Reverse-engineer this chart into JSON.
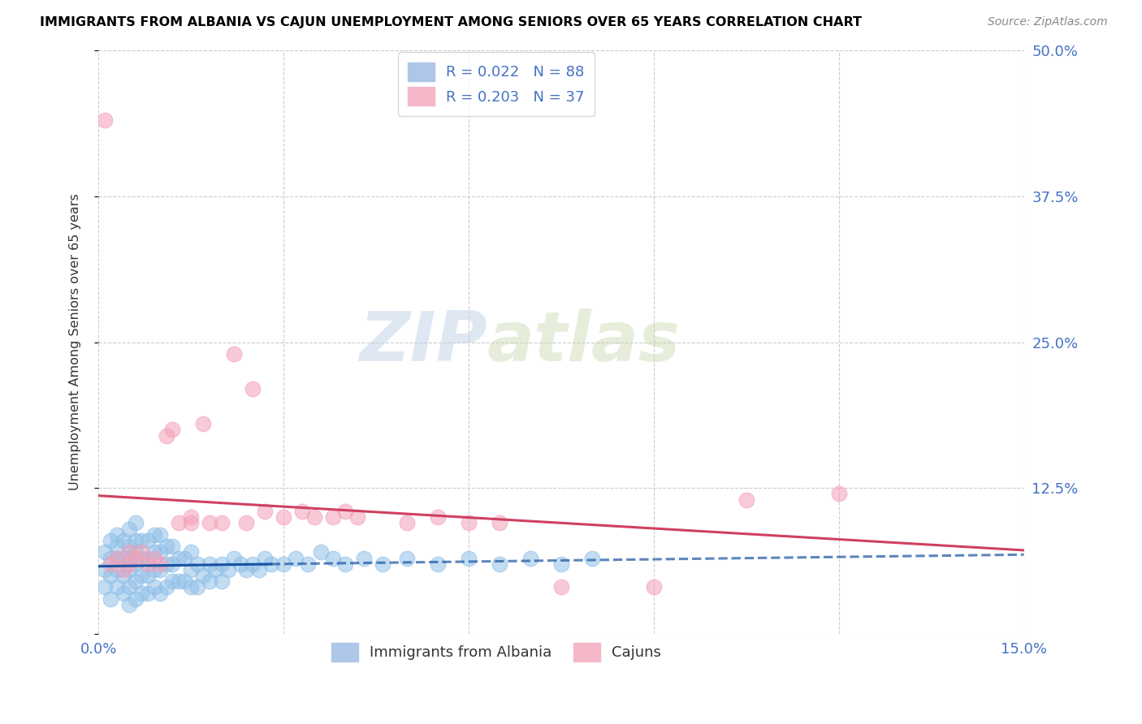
{
  "title": "IMMIGRANTS FROM ALBANIA VS CAJUN UNEMPLOYMENT AMONG SENIORS OVER 65 YEARS CORRELATION CHART",
  "source": "Source: ZipAtlas.com",
  "ylabel": "Unemployment Among Seniors over 65 years",
  "xlim": [
    0.0,
    0.15
  ],
  "ylim": [
    0.0,
    0.5
  ],
  "albania_color": "#90c0e8",
  "cajun_color": "#f4a0b8",
  "albania_trend_color": "#1a52a0",
  "cajun_trend_color": "#d04060",
  "watermark_zip": "ZIP",
  "watermark_atlas": "atlas",
  "albania_x": [
    0.001,
    0.001,
    0.001,
    0.002,
    0.002,
    0.002,
    0.002,
    0.003,
    0.003,
    0.003,
    0.003,
    0.003,
    0.004,
    0.004,
    0.004,
    0.004,
    0.005,
    0.005,
    0.005,
    0.005,
    0.005,
    0.005,
    0.006,
    0.006,
    0.006,
    0.006,
    0.006,
    0.006,
    0.007,
    0.007,
    0.007,
    0.007,
    0.008,
    0.008,
    0.008,
    0.008,
    0.009,
    0.009,
    0.009,
    0.009,
    0.01,
    0.01,
    0.01,
    0.01,
    0.011,
    0.011,
    0.011,
    0.012,
    0.012,
    0.012,
    0.013,
    0.013,
    0.014,
    0.014,
    0.015,
    0.015,
    0.015,
    0.016,
    0.016,
    0.017,
    0.018,
    0.018,
    0.019,
    0.02,
    0.02,
    0.021,
    0.022,
    0.023,
    0.024,
    0.025,
    0.026,
    0.027,
    0.028,
    0.03,
    0.032,
    0.034,
    0.036,
    0.038,
    0.04,
    0.043,
    0.046,
    0.05,
    0.055,
    0.06,
    0.065,
    0.07,
    0.075,
    0.08
  ],
  "albania_y": [
    0.04,
    0.055,
    0.07,
    0.03,
    0.05,
    0.065,
    0.08,
    0.04,
    0.055,
    0.065,
    0.075,
    0.085,
    0.035,
    0.05,
    0.065,
    0.08,
    0.025,
    0.04,
    0.055,
    0.065,
    0.075,
    0.09,
    0.03,
    0.045,
    0.06,
    0.07,
    0.08,
    0.095,
    0.035,
    0.05,
    0.065,
    0.08,
    0.035,
    0.05,
    0.065,
    0.08,
    0.04,
    0.055,
    0.07,
    0.085,
    0.035,
    0.055,
    0.07,
    0.085,
    0.04,
    0.06,
    0.075,
    0.045,
    0.06,
    0.075,
    0.045,
    0.065,
    0.045,
    0.065,
    0.04,
    0.055,
    0.07,
    0.04,
    0.06,
    0.05,
    0.045,
    0.06,
    0.055,
    0.045,
    0.06,
    0.055,
    0.065,
    0.06,
    0.055,
    0.06,
    0.055,
    0.065,
    0.06,
    0.06,
    0.065,
    0.06,
    0.07,
    0.065,
    0.06,
    0.065,
    0.06,
    0.065,
    0.06,
    0.065,
    0.06,
    0.065,
    0.06,
    0.065
  ],
  "cajun_x": [
    0.001,
    0.002,
    0.003,
    0.004,
    0.005,
    0.005,
    0.006,
    0.007,
    0.008,
    0.009,
    0.01,
    0.011,
    0.012,
    0.013,
    0.015,
    0.017,
    0.018,
    0.02,
    0.022,
    0.024,
    0.025,
    0.027,
    0.03,
    0.033,
    0.035,
    0.038,
    0.04,
    0.042,
    0.05,
    0.055,
    0.06,
    0.065,
    0.075,
    0.09,
    0.105,
    0.12,
    0.015
  ],
  "cajun_y": [
    0.44,
    0.06,
    0.065,
    0.055,
    0.06,
    0.07,
    0.065,
    0.07,
    0.06,
    0.065,
    0.06,
    0.17,
    0.175,
    0.095,
    0.1,
    0.18,
    0.095,
    0.095,
    0.24,
    0.095,
    0.21,
    0.105,
    0.1,
    0.105,
    0.1,
    0.1,
    0.105,
    0.1,
    0.095,
    0.1,
    0.095,
    0.095,
    0.04,
    0.04,
    0.115,
    0.12,
    0.095
  ]
}
